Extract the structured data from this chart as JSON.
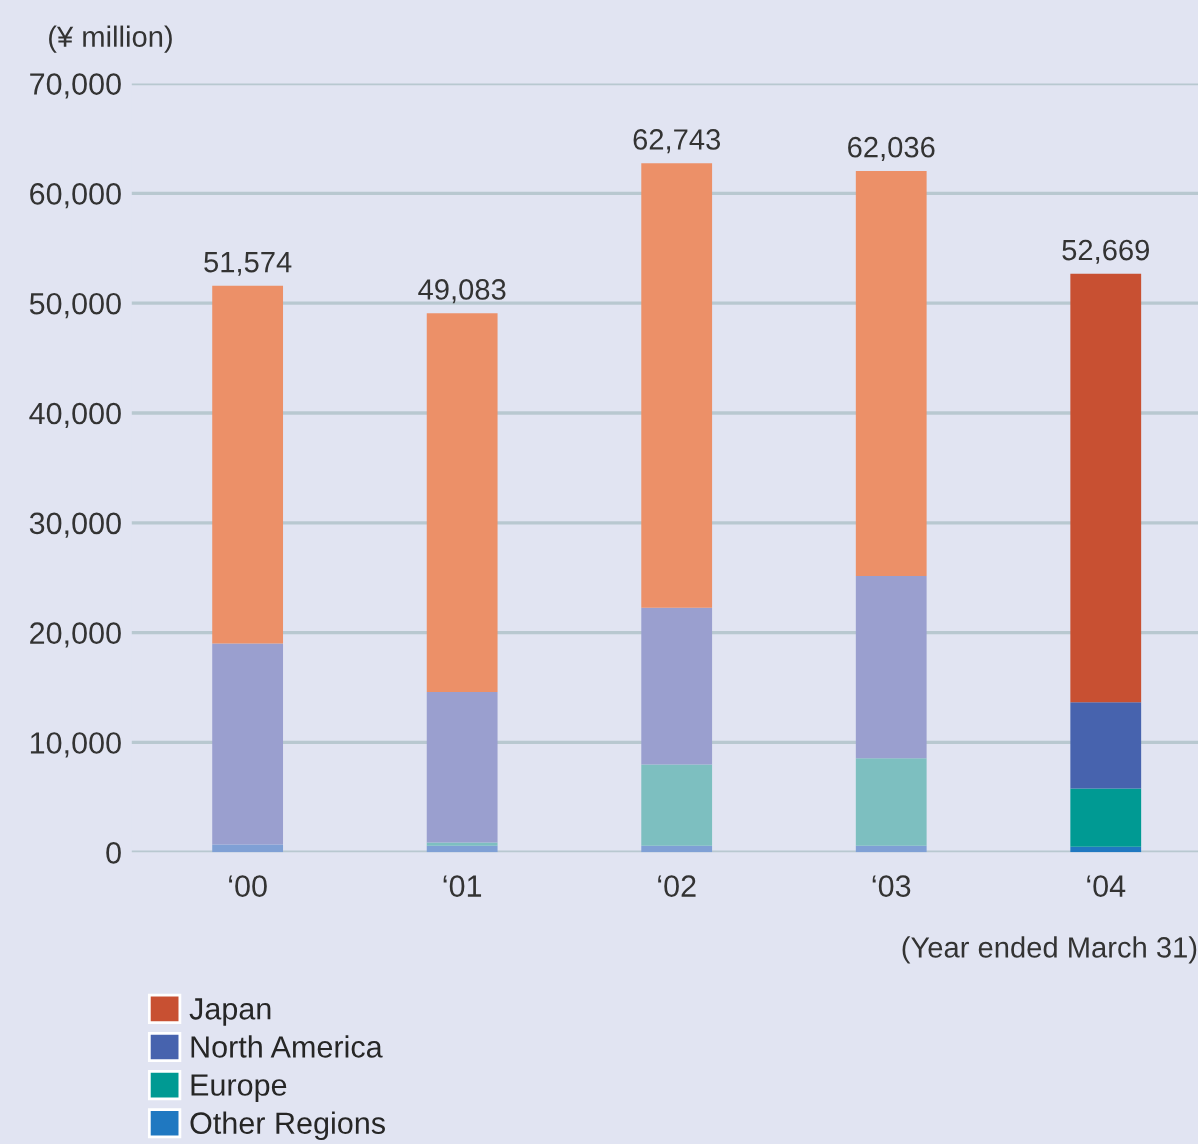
{
  "chart_data": {
    "type": "bar",
    "stacked": true,
    "ylabel": "(¥ million)",
    "xlabel": "(Year ended March 31)",
    "categories": [
      "‘00",
      "‘01",
      "‘02",
      "‘03",
      "‘04"
    ],
    "series": [
      {
        "name": "Other Regions",
        "color": "#1f78c1",
        "colors": [
          "#7fa0d5",
          "#7fa0d5",
          "#7fa0d5",
          "#7fa0d5",
          "#1f78c1"
        ],
        "values": [
          700,
          600,
          600,
          600,
          500
        ]
      },
      {
        "name": "Europe",
        "color": "#009a93",
        "colors": [
          "#7dbfc0",
          "#7dbfc0",
          "#7dbfc0",
          "#7dbfc0",
          "#009a93"
        ],
        "values": [
          0,
          300,
          7400,
          7970,
          5310
        ]
      },
      {
        "name": "North America",
        "color": "#4763ae",
        "colors": [
          "#9a9fcf",
          "#9a9fcf",
          "#9a9fcf",
          "#9a9fcf",
          "#4763ae"
        ],
        "values": [
          18300,
          13700,
          14270,
          16580,
          7860
        ]
      },
      {
        "name": "Japan",
        "color": "#c85032",
        "colors": [
          "#ec9068",
          "#ec9068",
          "#ec9068",
          "#ec9068",
          "#c85032"
        ],
        "values": [
          32574,
          34483,
          40473,
          36886,
          38999
        ]
      }
    ],
    "totals": [
      "51,574",
      "49,083",
      "62,743",
      "62,036",
      "52,669"
    ],
    "ylim": [
      0,
      70000
    ],
    "yticks": [
      {
        "value": 0,
        "label": "0"
      },
      {
        "value": 10000,
        "label": "10,000"
      },
      {
        "value": 20000,
        "label": "20,000"
      },
      {
        "value": 30000,
        "label": "30,000"
      },
      {
        "value": 40000,
        "label": "40,000"
      },
      {
        "value": 50000,
        "label": "50,000"
      },
      {
        "value": 60000,
        "label": "60,000"
      },
      {
        "value": 70000,
        "label": "70,000"
      }
    ],
    "grid": "y",
    "legend": "bottom left"
  }
}
